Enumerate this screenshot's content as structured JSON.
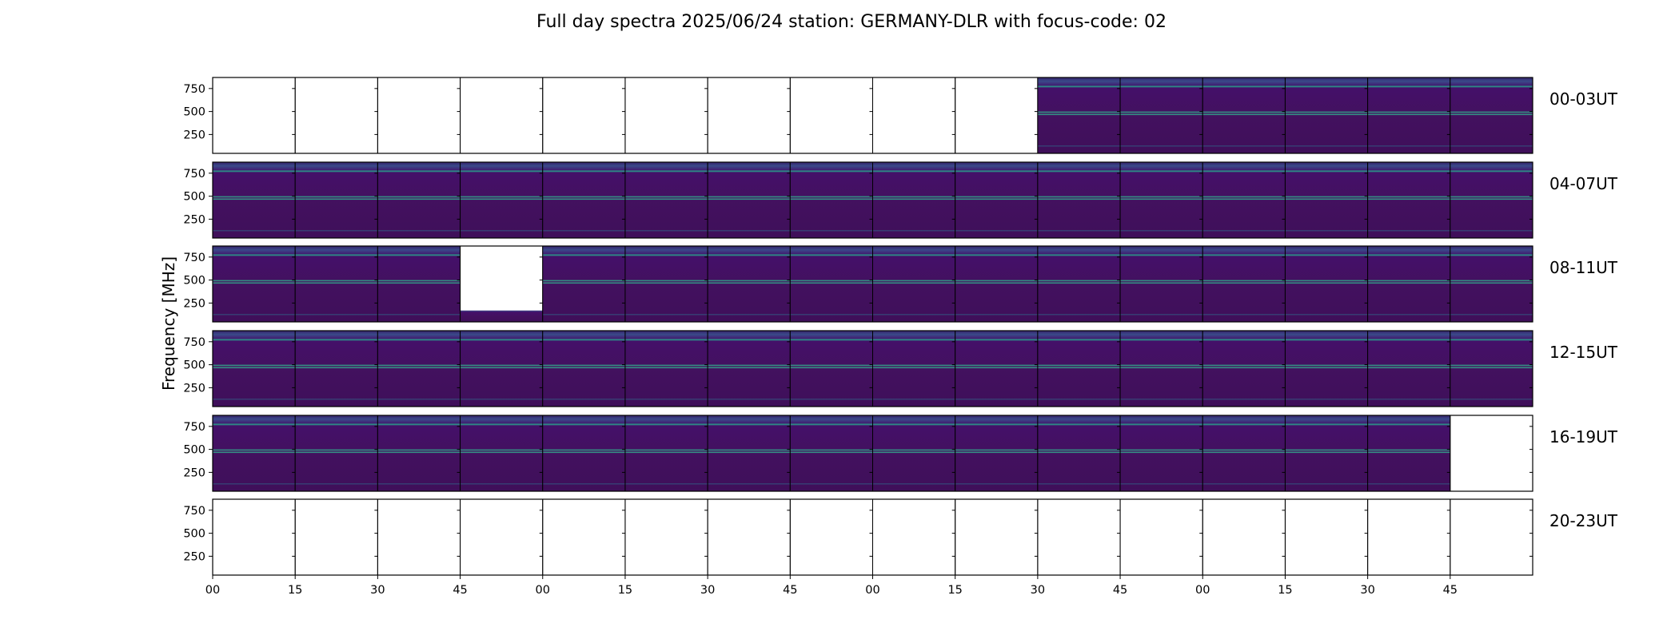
{
  "chart_data": {
    "type": "heatmap",
    "title": "Full day spectra 2025/06/24 station: GERMANY-DLR with focus-code: 02",
    "ylabel": "Frequency [MHz]",
    "xlabel": "",
    "y_ticks": [
      "250",
      "500",
      "750"
    ],
    "y_range_mhz": [
      45,
      870
    ],
    "x_ticks": [
      "00",
      "15",
      "30",
      "45",
      "00",
      "15",
      "30",
      "45",
      "00",
      "15",
      "30",
      "45",
      "00",
      "15",
      "30",
      "45"
    ],
    "colormap": "viridis",
    "panels_per_row": 16,
    "panel_minutes": 15,
    "rows": [
      {
        "label": "00-03UT",
        "coverage": [
          0,
          0,
          0,
          0,
          0,
          0,
          0,
          0,
          0,
          0,
          1,
          1,
          1,
          1,
          1,
          1
        ]
      },
      {
        "label": "04-07UT",
        "coverage": [
          1,
          1,
          1,
          1,
          1,
          1,
          1,
          1,
          1,
          1,
          1,
          1,
          1,
          1,
          1,
          1
        ]
      },
      {
        "label": "08-11UT",
        "coverage": [
          1,
          1,
          1,
          0.15,
          1,
          1,
          1,
          1,
          1,
          1,
          1,
          1,
          1,
          1,
          1,
          1
        ]
      },
      {
        "label": "12-15UT",
        "coverage": [
          1,
          1,
          1,
          1,
          1,
          1,
          1,
          1,
          1,
          1,
          1,
          1,
          1,
          1,
          1,
          1
        ]
      },
      {
        "label": "16-19UT",
        "coverage": [
          1,
          1,
          1,
          1,
          1,
          1,
          1,
          1,
          1,
          1,
          1,
          1,
          1,
          1,
          1,
          0
        ]
      },
      {
        "label": "20-23UT",
        "coverage": [
          0,
          0,
          0,
          0,
          0,
          0,
          0,
          0,
          0,
          0,
          0,
          0,
          0,
          0,
          0,
          0
        ]
      }
    ],
    "grid": false,
    "legend": "none"
  }
}
